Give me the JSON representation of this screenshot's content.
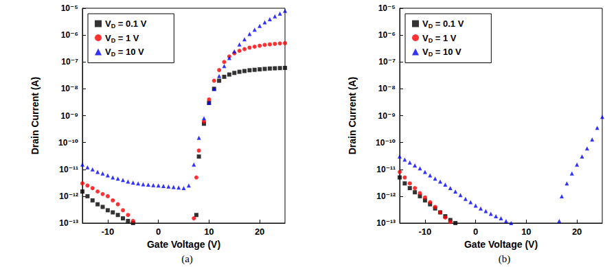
{
  "chart_data": [
    {
      "type": "scatter",
      "title": "(a)",
      "x_label": "Gate Voltage (V)",
      "y_label": "Drain Current (A)",
      "xlim": [
        -15,
        25
      ],
      "xticks": [
        -10,
        0,
        10,
        20
      ],
      "ylim": [
        1e-13,
        1e-05
      ],
      "yticks": [
        {
          "value": 1e-13,
          "label": "10⁻¹³"
        },
        {
          "value": 1e-12,
          "label": "10⁻¹²"
        },
        {
          "value": 1e-11,
          "label": "10⁻¹¹"
        },
        {
          "value": 1e-10,
          "label": "10⁻¹⁰"
        },
        {
          "value": 1e-09,
          "label": "10⁻⁹"
        },
        {
          "value": 1e-08,
          "label": "10⁻⁸"
        },
        {
          "value": 1e-07,
          "label": "10⁻⁷"
        },
        {
          "value": 1e-06,
          "label": "10⁻⁶"
        },
        {
          "value": 1e-05,
          "label": "10⁻⁵"
        }
      ],
      "log": "y",
      "legend": "upper left",
      "series": [
        {
          "name": "VD = 0.1 V",
          "color": "#000000",
          "marker": "square",
          "x": [
            -15,
            -14,
            -13,
            -12,
            -11,
            -10,
            -9,
            -8,
            -7,
            -6,
            -5,
            7.5,
            8,
            9,
            10,
            11,
            12,
            13,
            14,
            15,
            16,
            17,
            18,
            19,
            20,
            21,
            22,
            23,
            24,
            25
          ],
          "values": [
            1.5e-12,
            1e-12,
            7e-13,
            5e-13,
            4e-13,
            3e-13,
            2.5e-13,
            2e-13,
            1.5e-13,
            1.2e-13,
            1e-13,
            2e-13,
            3e-11,
            5e-10,
            3e-09,
            1e-08,
            2e-08,
            2.8e-08,
            3.4e-08,
            3.9e-08,
            4.3e-08,
            4.6e-08,
            4.9e-08,
            5.1e-08,
            5.3e-08,
            5.5e-08,
            5.7e-08,
            5.8e-08,
            5.9e-08,
            6e-08
          ]
        },
        {
          "name": "VD = 1 V",
          "color": "#ff0000",
          "marker": "circle",
          "x": [
            -15,
            -14,
            -13,
            -12,
            -11,
            -10,
            -9,
            -8,
            -7,
            -6,
            -5,
            7,
            7.5,
            8,
            9,
            10,
            11,
            12,
            13,
            14,
            15,
            16,
            17,
            18,
            19,
            20,
            21,
            22,
            23,
            24,
            25
          ],
          "values": [
            3e-12,
            2.5e-12,
            2e-12,
            1.5e-12,
            1.2e-12,
            1e-12,
            7e-13,
            5e-13,
            3e-13,
            2e-13,
            1.2e-13,
            1.5e-13,
            5e-12,
            5e-11,
            6e-10,
            4e-09,
            2e-08,
            5e-08,
            1e-07,
            1.6e-07,
            2.1e-07,
            2.6e-07,
            3e-07,
            3.4e-07,
            3.7e-07,
            4e-07,
            4.3e-07,
            4.5e-07,
            4.7e-07,
            4.9e-07,
            5e-07
          ]
        },
        {
          "name": "VD = 10 V",
          "color": "#0000ff",
          "marker": "triangle",
          "x": [
            -15,
            -14,
            -13,
            -12,
            -11,
            -10,
            -9,
            -8,
            -7,
            -6,
            -5,
            -4,
            -3,
            -2,
            -1,
            0,
            1,
            2,
            3,
            4,
            5,
            6,
            7,
            8,
            9,
            10,
            11,
            12,
            13,
            14,
            15,
            16,
            17,
            18,
            19,
            20,
            21,
            22,
            23,
            24,
            25
          ],
          "values": [
            1.5e-11,
            1.2e-11,
            1e-11,
            8e-12,
            7e-12,
            6e-12,
            5e-12,
            4.5e-12,
            4e-12,
            3.5e-12,
            3.2e-12,
            3e-12,
            2.8e-12,
            2.7e-12,
            2.6e-12,
            2.5e-12,
            2.4e-12,
            2.3e-12,
            2.2e-12,
            2.1e-12,
            2e-12,
            2.5e-12,
            1.5e-11,
            1.5e-10,
            8e-10,
            3e-09,
            1e-08,
            3e-08,
            7e-08,
            1.4e-07,
            2.5e-07,
            4.5e-07,
            7e-07,
            1.1e-06,
            1.6e-06,
            2.2e-06,
            3e-06,
            3.9e-06,
            5e-06,
            6.3e-06,
            8e-06
          ]
        }
      ]
    },
    {
      "type": "scatter",
      "title": "(b)",
      "x_label": "Gate Voltage (V)",
      "y_label": "Drain Current (A)",
      "xlim": [
        -15,
        25
      ],
      "xticks": [
        -10,
        0,
        10,
        20
      ],
      "ylim": [
        1e-13,
        1e-05
      ],
      "yticks": [
        {
          "value": 1e-13,
          "label": "10⁻¹³"
        },
        {
          "value": 1e-12,
          "label": "10⁻¹²"
        },
        {
          "value": 1e-11,
          "label": "10⁻¹¹"
        },
        {
          "value": 1e-10,
          "label": "10⁻¹⁰"
        },
        {
          "value": 1e-09,
          "label": "10⁻⁹"
        },
        {
          "value": 1e-08,
          "label": "10⁻⁸"
        },
        {
          "value": 1e-07,
          "label": "10⁻⁷"
        },
        {
          "value": 1e-06,
          "label": "10⁻⁶"
        },
        {
          "value": 1e-05,
          "label": "10⁻⁵"
        }
      ],
      "log": "y",
      "legend": "upper left",
      "series": [
        {
          "name": "VD = 0.1 V",
          "color": "#000000",
          "marker": "square",
          "x": [
            -15,
            -14,
            -13,
            -12,
            -11,
            -10,
            -9,
            -8,
            -7,
            -6,
            -5,
            -4
          ],
          "values": [
            5e-12,
            3e-12,
            2e-12,
            1.4e-12,
            1e-12,
            7e-13,
            5e-13,
            3.5e-13,
            2.5e-13,
            1.8e-13,
            1.3e-13,
            1e-13
          ]
        },
        {
          "name": "VD = 1 V",
          "color": "#ff0000",
          "marker": "circle",
          "x": [
            -15,
            -14,
            -13,
            -12,
            -11,
            -10,
            -9,
            -8,
            -7,
            -6,
            -5
          ],
          "values": [
            8e-12,
            5e-12,
            3e-12,
            2e-12,
            1.3e-12,
            9e-13,
            6e-13,
            4e-13,
            2.5e-13,
            1.6e-13,
            1.1e-13
          ]
        },
        {
          "name": "VD = 10 V",
          "color": "#0000ff",
          "marker": "triangle",
          "x": [
            -15,
            -14,
            -13,
            -12,
            -11,
            -10,
            -9,
            -8,
            -7,
            -6,
            -5,
            -4,
            -3,
            -2,
            -1,
            0,
            1,
            2,
            3,
            4,
            5,
            6,
            7,
            16.5,
            17,
            18,
            19,
            20,
            21,
            22,
            23,
            24,
            25
          ],
          "values": [
            3e-11,
            2.3e-11,
            1.8e-11,
            1.4e-11,
            1.1e-11,
            8e-12,
            6e-12,
            4.5e-12,
            3.5e-12,
            2.7e-12,
            2e-12,
            1.5e-12,
            1.1e-12,
            8e-13,
            6e-13,
            4.5e-13,
            3.5e-13,
            2.8e-13,
            2.2e-13,
            1.8e-13,
            1.5e-13,
            1.2e-13,
            1e-13,
            1.2e-13,
            1e-12,
            3e-12,
            7e-12,
            1.5e-11,
            3e-11,
            6e-11,
            1.3e-10,
            3.5e-10,
            9e-10
          ]
        }
      ]
    }
  ]
}
